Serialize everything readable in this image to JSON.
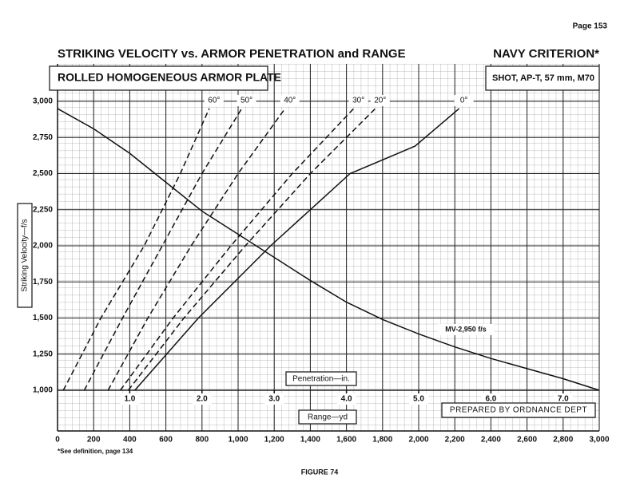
{
  "page": "Page 153",
  "footnote": "*See definition, page 134",
  "figure": "FIGURE 74",
  "chart_data": {
    "type": "line",
    "title": "STRIKING VELOCITY vs. ARMOR PENETRATION and RANGE",
    "criterion": "NAVY CRITERION*",
    "subtitle": "ROLLED HOMOGENEOUS ARMOR PLATE",
    "projectile": "SHOT, AP-T, 57 mm, M70",
    "ylabel": "Striking Velocity—f/s",
    "xlabel": "Range—yd",
    "x2label": "Penetration—in.",
    "credit": "PREPARED BY ORDNANCE DEPT",
    "xlim": [
      0,
      3000
    ],
    "x2lim": [
      0,
      7.5
    ],
    "ylim": [
      1000,
      3000
    ],
    "xticks": [
      0,
      200,
      400,
      600,
      800,
      {
        "value": 1000,
        "label": "1,000"
      },
      {
        "value": 1200,
        "label": "1,200"
      },
      {
        "value": 1400,
        "label": "1,400"
      },
      {
        "value": 1600,
        "label": "1,600"
      },
      {
        "value": 1800,
        "label": "1,800"
      },
      {
        "value": 2000,
        "label": "2,000"
      },
      {
        "value": 2200,
        "label": "2,200"
      },
      {
        "value": 2400,
        "label": "2,400"
      },
      {
        "value": 2600,
        "label": "2,600"
      },
      {
        "value": 2800,
        "label": "2,800"
      },
      {
        "value": 3000,
        "label": "3,000"
      }
    ],
    "x2ticks": [
      {
        "value": 1,
        "label": "1.0"
      },
      {
        "value": 2,
        "label": "2.0"
      },
      {
        "value": 3,
        "label": "3.0"
      },
      {
        "value": 4,
        "label": "4.0"
      },
      {
        "value": 5,
        "label": "5.0"
      },
      {
        "value": 6,
        "label": "6.0"
      },
      {
        "value": 7,
        "label": "7.0"
      }
    ],
    "yticks": [
      {
        "value": 1000,
        "label": "1,000"
      },
      {
        "value": 1250,
        "label": "1,250"
      },
      {
        "value": 1500,
        "label": "1,500"
      },
      {
        "value": 1750,
        "label": "1,750"
      },
      {
        "value": 2000,
        "label": "2,000"
      },
      {
        "value": 2250,
        "label": "2,250"
      },
      {
        "value": 2500,
        "label": "2,500"
      },
      {
        "value": 2750,
        "label": "2,750"
      },
      {
        "value": 3000,
        "label": "3,000"
      }
    ],
    "grid": true,
    "series": [
      {
        "name": "60°",
        "color": "#111111",
        "dashed": true,
        "axis": "x2",
        "x": [
          0.08,
          0.6,
          1.2,
          1.7,
          2.1
        ],
        "values": [
          1000,
          1500,
          2000,
          2500,
          2950
        ]
      },
      {
        "name": "50°",
        "color": "#111111",
        "dashed": true,
        "axis": "x2",
        "x": [
          0.37,
          0.9,
          1.45,
          2.0,
          2.55
        ],
        "values": [
          1000,
          1500,
          2000,
          2500,
          2950
        ]
      },
      {
        "name": "40°",
        "color": "#111111",
        "dashed": true,
        "axis": "x2",
        "x": [
          0.7,
          1.25,
          1.85,
          2.5,
          3.15
        ],
        "values": [
          1000,
          1500,
          2000,
          2500,
          2950
        ]
      },
      {
        "name": "30°",
        "color": "#111111",
        "dashed": true,
        "axis": "x2",
        "x": [
          0.87,
          1.6,
          2.4,
          3.25,
          4.1
        ],
        "values": [
          1000,
          1500,
          2000,
          2500,
          2950
        ]
      },
      {
        "name": "20°",
        "color": "#111111",
        "dashed": true,
        "axis": "x2",
        "x": [
          0.98,
          1.75,
          2.6,
          3.5,
          4.4
        ],
        "values": [
          1000,
          1500,
          2000,
          2500,
          2950
        ]
      },
      {
        "name": "0°",
        "color": "#111111",
        "dashed": false,
        "axis": "x2",
        "x": [
          1.07,
          1.95,
          2.95,
          4.05,
          4.95,
          5.56
        ],
        "values": [
          1000,
          1500,
          2000,
          2500,
          2690,
          2950
        ]
      },
      {
        "color": "#111111",
        "dashed": false,
        "x": [
          0,
          200,
          400,
          600,
          800,
          1000,
          1200,
          1400,
          1600,
          1800,
          2000,
          2200,
          2400,
          2600,
          2800,
          3000
        ],
        "values": [
          2950,
          2810,
          2640,
          2440,
          2240,
          2080,
          1920,
          1760,
          1610,
          1490,
          1390,
          1300,
          1220,
          1150,
          1080,
          1000
        ]
      }
    ],
    "annotations": [
      {
        "text": "MV-2,950 f/s"
      }
    ]
  }
}
